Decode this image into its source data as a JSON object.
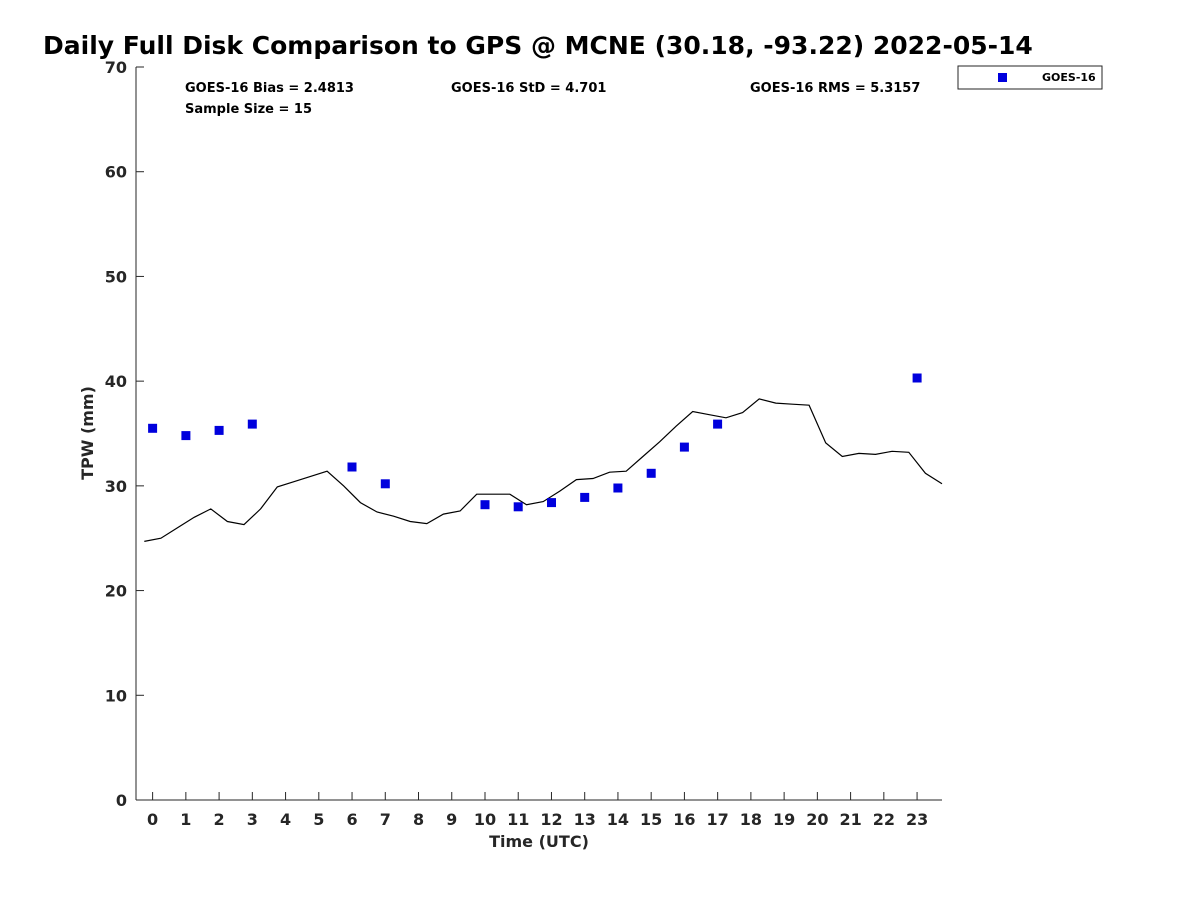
{
  "chart_data": {
    "type": "scatter",
    "title": "Daily Full Disk Comparison to GPS @ MCNE (30.18, -93.22) 2022-05-14",
    "xlabel": "Time (UTC)",
    "ylabel": "TPW (mm)",
    "xlim": [
      -0.5,
      23.75
    ],
    "ylim": [
      0,
      70
    ],
    "x_ticks": [
      0,
      1,
      2,
      3,
      4,
      5,
      6,
      7,
      8,
      9,
      10,
      11,
      12,
      13,
      14,
      15,
      16,
      17,
      18,
      19,
      20,
      21,
      22,
      23
    ],
    "y_ticks": [
      0,
      10,
      20,
      30,
      40,
      50,
      60,
      70
    ],
    "grid": false,
    "legend_position": "outside top-right",
    "stats": {
      "bias": "GOES-16 Bias = 2.4813",
      "std": "GOES-16 StD = 4.701",
      "rms": "GOES-16 RMS = 5.3157",
      "sample": "Sample Size = 15"
    },
    "series": [
      {
        "name": "GOES-16",
        "type": "scatter",
        "marker": "square",
        "color": "#0000dd",
        "x": [
          0,
          1,
          2,
          3,
          6,
          7,
          10,
          11,
          12,
          13,
          14,
          15,
          16,
          17,
          23
        ],
        "y": [
          35.5,
          34.8,
          35.3,
          35.9,
          31.8,
          30.2,
          28.2,
          28.0,
          28.4,
          28.9,
          29.8,
          31.2,
          33.7,
          35.9,
          40.3
        ]
      },
      {
        "type": "line",
        "color": "#000000",
        "x": [
          -0.25,
          0.25,
          0.75,
          1.25,
          1.75,
          2.25,
          2.75,
          3.25,
          3.75,
          4.25,
          4.75,
          5.25,
          5.75,
          6.25,
          6.75,
          7.25,
          7.75,
          8.25,
          8.75,
          9.25,
          9.75,
          10.25,
          10.75,
          11.25,
          11.75,
          12.25,
          12.75,
          13.25,
          13.75,
          14.25,
          14.75,
          15.25,
          15.75,
          16.25,
          16.75,
          17.25,
          17.75,
          18.25,
          18.75,
          19.25,
          19.75,
          20.25,
          20.75,
          21.25,
          21.75,
          22.25,
          22.75,
          23.25,
          23.75
        ],
        "y": [
          24.7,
          25.0,
          26.0,
          27.0,
          27.8,
          26.6,
          26.3,
          27.8,
          29.9,
          30.4,
          30.9,
          31.4,
          30.0,
          28.4,
          27.5,
          27.1,
          26.6,
          26.4,
          27.3,
          27.6,
          29.2,
          29.2,
          29.2,
          28.2,
          28.5,
          29.5,
          30.6,
          30.7,
          31.3,
          31.4,
          32.8,
          34.2,
          35.7,
          37.1,
          36.8,
          36.5,
          37.0,
          38.3,
          37.9,
          37.8,
          37.7,
          34.1,
          32.8,
          33.1,
          33.0,
          33.3,
          33.2,
          31.2,
          30.2
        ]
      }
    ]
  }
}
